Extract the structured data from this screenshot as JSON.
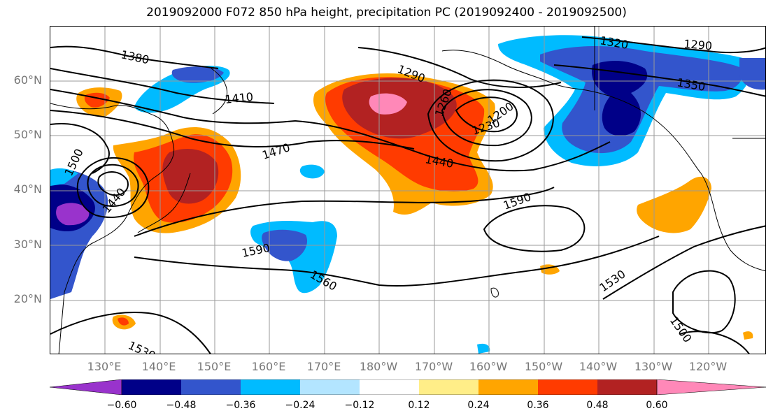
{
  "title": "2019092000 F072 850 hPa height, precipitation PC (2019092400 - 2019092500)",
  "lat_labels": [
    "60°N",
    "50°N",
    "40°N",
    "30°N",
    "20°N"
  ],
  "lon_labels": [
    "130°E",
    "140°E",
    "150°E",
    "160°E",
    "170°E",
    "180°W",
    "170°W",
    "160°W",
    "150°W",
    "140°W",
    "130°W",
    "120°W"
  ],
  "contour_labels": [
    "1380",
    "1410",
    "1290",
    "1260",
    "1230",
    "1200",
    "1320",
    "1290",
    "1350",
    "1470",
    "1440",
    "1500",
    "1440",
    "1590",
    "1590",
    "1560",
    "1530",
    "1500",
    "1530"
  ],
  "colorbar": {
    "ticks": [
      "−0.60",
      "−0.48",
      "−0.36",
      "−0.24",
      "−0.12",
      "0.12",
      "0.24",
      "0.36",
      "0.48",
      "0.60"
    ],
    "colors": [
      "#9933cc",
      "#000088",
      "#3355cc",
      "#00bbff",
      "#b3e5ff",
      "#ffffff",
      "#ffee88",
      "#ffa500",
      "#ff3b00",
      "#b22222",
      "#ff88b8"
    ]
  }
}
